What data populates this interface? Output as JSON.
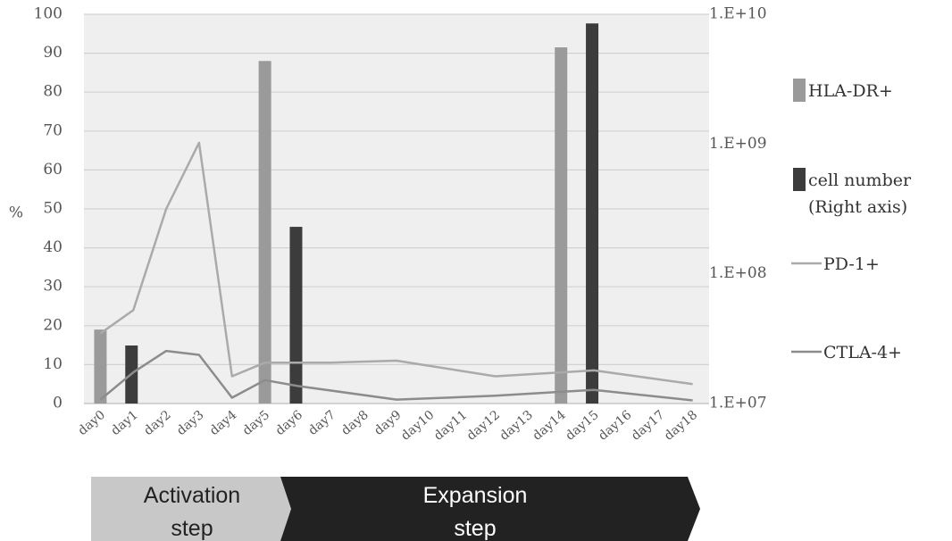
{
  "chart_data": {
    "type": "bar",
    "categories": [
      "day0",
      "day1",
      "day2",
      "day3",
      "day4",
      "day5",
      "day6",
      "day7",
      "day8",
      "day9",
      "day10",
      "day11",
      "day12",
      "day13",
      "day14",
      "day15",
      "day16",
      "day17",
      "day18"
    ],
    "ylabel": "%",
    "ylim": [
      0,
      100
    ],
    "yticks": [
      "0",
      "10",
      "20",
      "30",
      "40",
      "50",
      "60",
      "70",
      "80",
      "90",
      "100"
    ],
    "y2lim": [
      10000000,
      10000000000
    ],
    "y2scale": "log",
    "y2ticks": [
      "1.E+07",
      "1.E+08",
      "1.E+09",
      "1.E+10"
    ],
    "grid": true,
    "legend_position": "right",
    "series": [
      {
        "name": "HLA-DR+",
        "kind": "bar",
        "axis": "left",
        "color": "#9a9a9a",
        "points": [
          {
            "x": "day0",
            "y": 19
          },
          {
            "x": "day5",
            "y": 88
          },
          {
            "x": "day14",
            "y": 91.5
          }
        ]
      },
      {
        "name": "cell number",
        "name_line2": "(Right axis)",
        "kind": "bar",
        "axis": "right",
        "color": "#3c3c3c",
        "points": [
          {
            "x": "day0",
            "y": 28000000
          },
          {
            "x": "day5",
            "y": 230000000
          },
          {
            "x": "day14",
            "y": 8500000000
          }
        ]
      },
      {
        "name": "PD-1+",
        "kind": "line",
        "axis": "left",
        "color": "#aaaaaa",
        "points": [
          {
            "x": "day0",
            "y": 18
          },
          {
            "x": "day1",
            "y": 24
          },
          {
            "x": "day2",
            "y": 50
          },
          {
            "x": "day3",
            "y": 67
          },
          {
            "x": "day4",
            "y": 7
          },
          {
            "x": "day5",
            "y": 10.5
          },
          {
            "x": "day7",
            "y": 10.5
          },
          {
            "x": "day9",
            "y": 11
          },
          {
            "x": "day12",
            "y": 7
          },
          {
            "x": "day14",
            "y": 8
          },
          {
            "x": "day15",
            "y": 8.5
          },
          {
            "x": "day18",
            "y": 5
          }
        ]
      },
      {
        "name": "CTLA-4+",
        "kind": "line",
        "axis": "left",
        "color": "#8c8c8c",
        "points": [
          {
            "x": "day0",
            "y": 1
          },
          {
            "x": "day1",
            "y": 8
          },
          {
            "x": "day2",
            "y": 13.5
          },
          {
            "x": "day3",
            "y": 12.5
          },
          {
            "x": "day4",
            "y": 1.5
          },
          {
            "x": "day5",
            "y": 6
          },
          {
            "x": "day6",
            "y": 4.5
          },
          {
            "x": "day9",
            "y": 1
          },
          {
            "x": "day12",
            "y": 2
          },
          {
            "x": "day14",
            "y": 3
          },
          {
            "x": "day15",
            "y": 3.5
          },
          {
            "x": "day18",
            "y": 0.8
          }
        ]
      }
    ]
  },
  "steps": [
    {
      "line1": "Activation",
      "line2": "step",
      "color": "#c8c8c8"
    },
    {
      "line1": "Expansion",
      "line2": "step",
      "color": "#222222"
    }
  ]
}
